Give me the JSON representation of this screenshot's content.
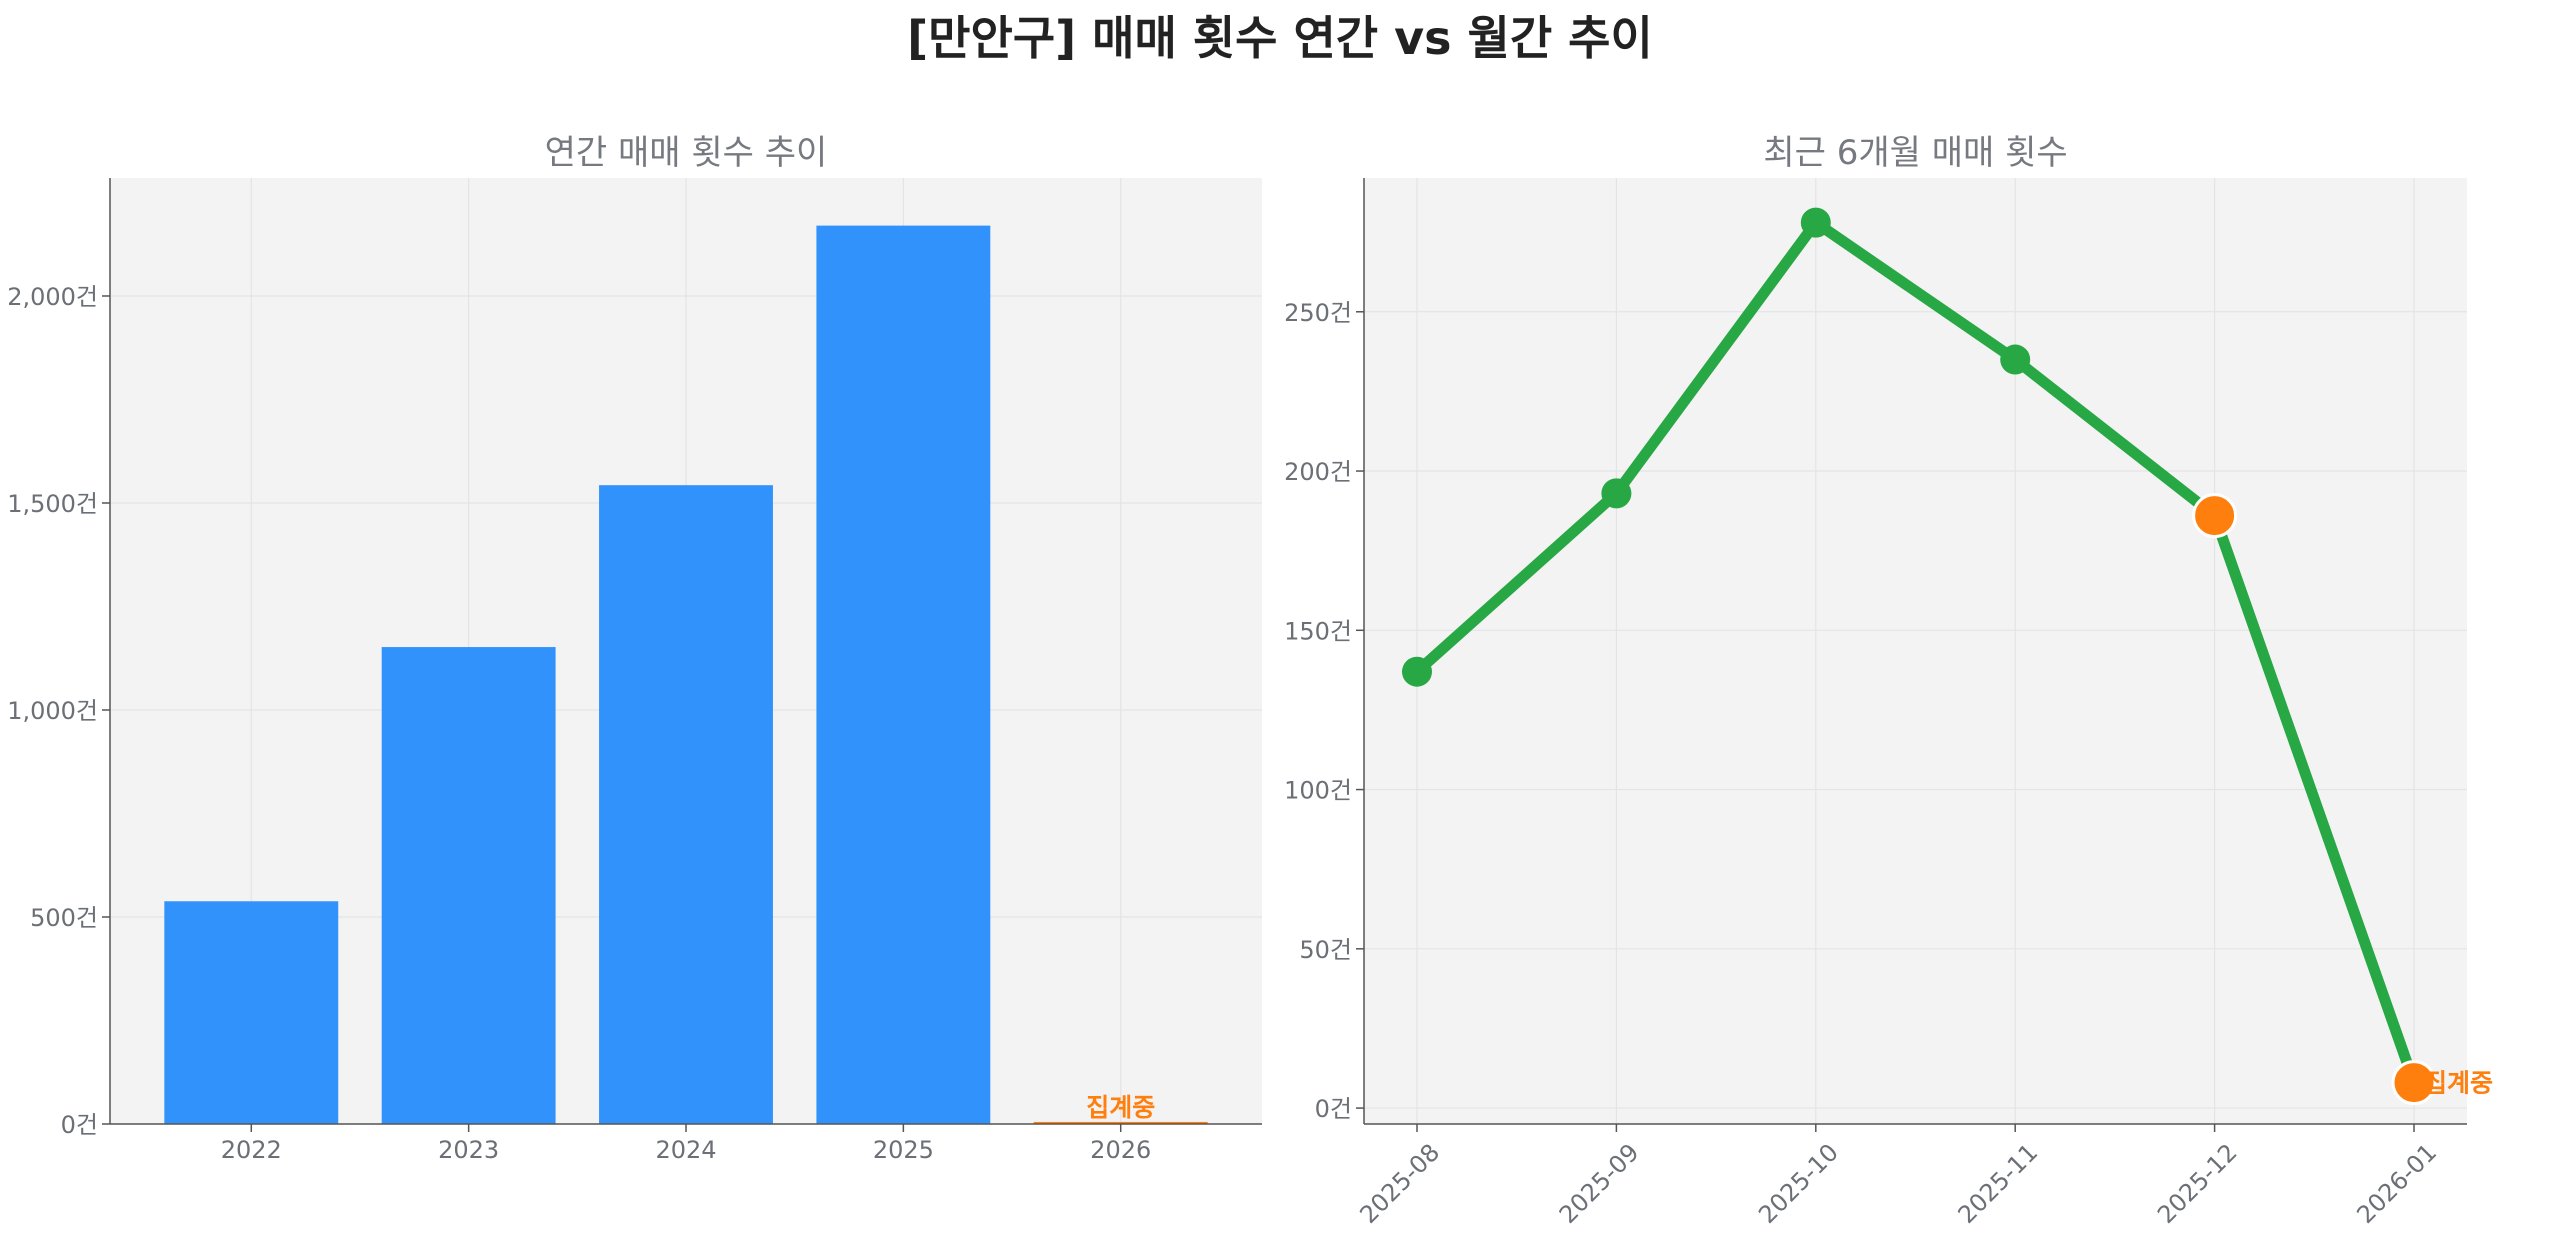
{
  "suptitle": "[만안구] 매매 횟수 연간 vs 월간 추이",
  "colors": {
    "bar": "#3092fa",
    "line": "#28a745",
    "highlight": "#ff7f0e",
    "panel_bg": "#f3f3f3"
  },
  "chart_data": [
    {
      "type": "bar",
      "title": "연간 매매 횟수 추이",
      "categories": [
        "2022",
        "2023",
        "2024",
        "2025",
        "2026"
      ],
      "values": [
        538,
        1152,
        1543,
        2170,
        5
      ],
      "highlight_index": 4,
      "annotation": {
        "index": 4,
        "text": "집계중"
      },
      "ylim": [
        0,
        2285
      ],
      "yticks": [
        0,
        500,
        1000,
        1500,
        2000
      ],
      "ytick_labels": [
        "0건",
        "500건",
        "1,000건",
        "1,500건",
        "2,000건"
      ],
      "grid": true
    },
    {
      "type": "line",
      "title": "최근 6개월 매매 횟수",
      "x": [
        "2025-08",
        "2025-09",
        "2025-10",
        "2025-11",
        "2025-12",
        "2026-01"
      ],
      "values": [
        137,
        193,
        278,
        235,
        186,
        8
      ],
      "highlight_indices": [
        4,
        5
      ],
      "annotation": {
        "index": 5,
        "text": "집계중"
      },
      "ylim": [
        -5,
        292
      ],
      "yticks": [
        0,
        50,
        100,
        150,
        200,
        250
      ],
      "ytick_labels": [
        "0건",
        "50건",
        "100건",
        "150건",
        "200건",
        "250건"
      ],
      "grid": true
    }
  ]
}
